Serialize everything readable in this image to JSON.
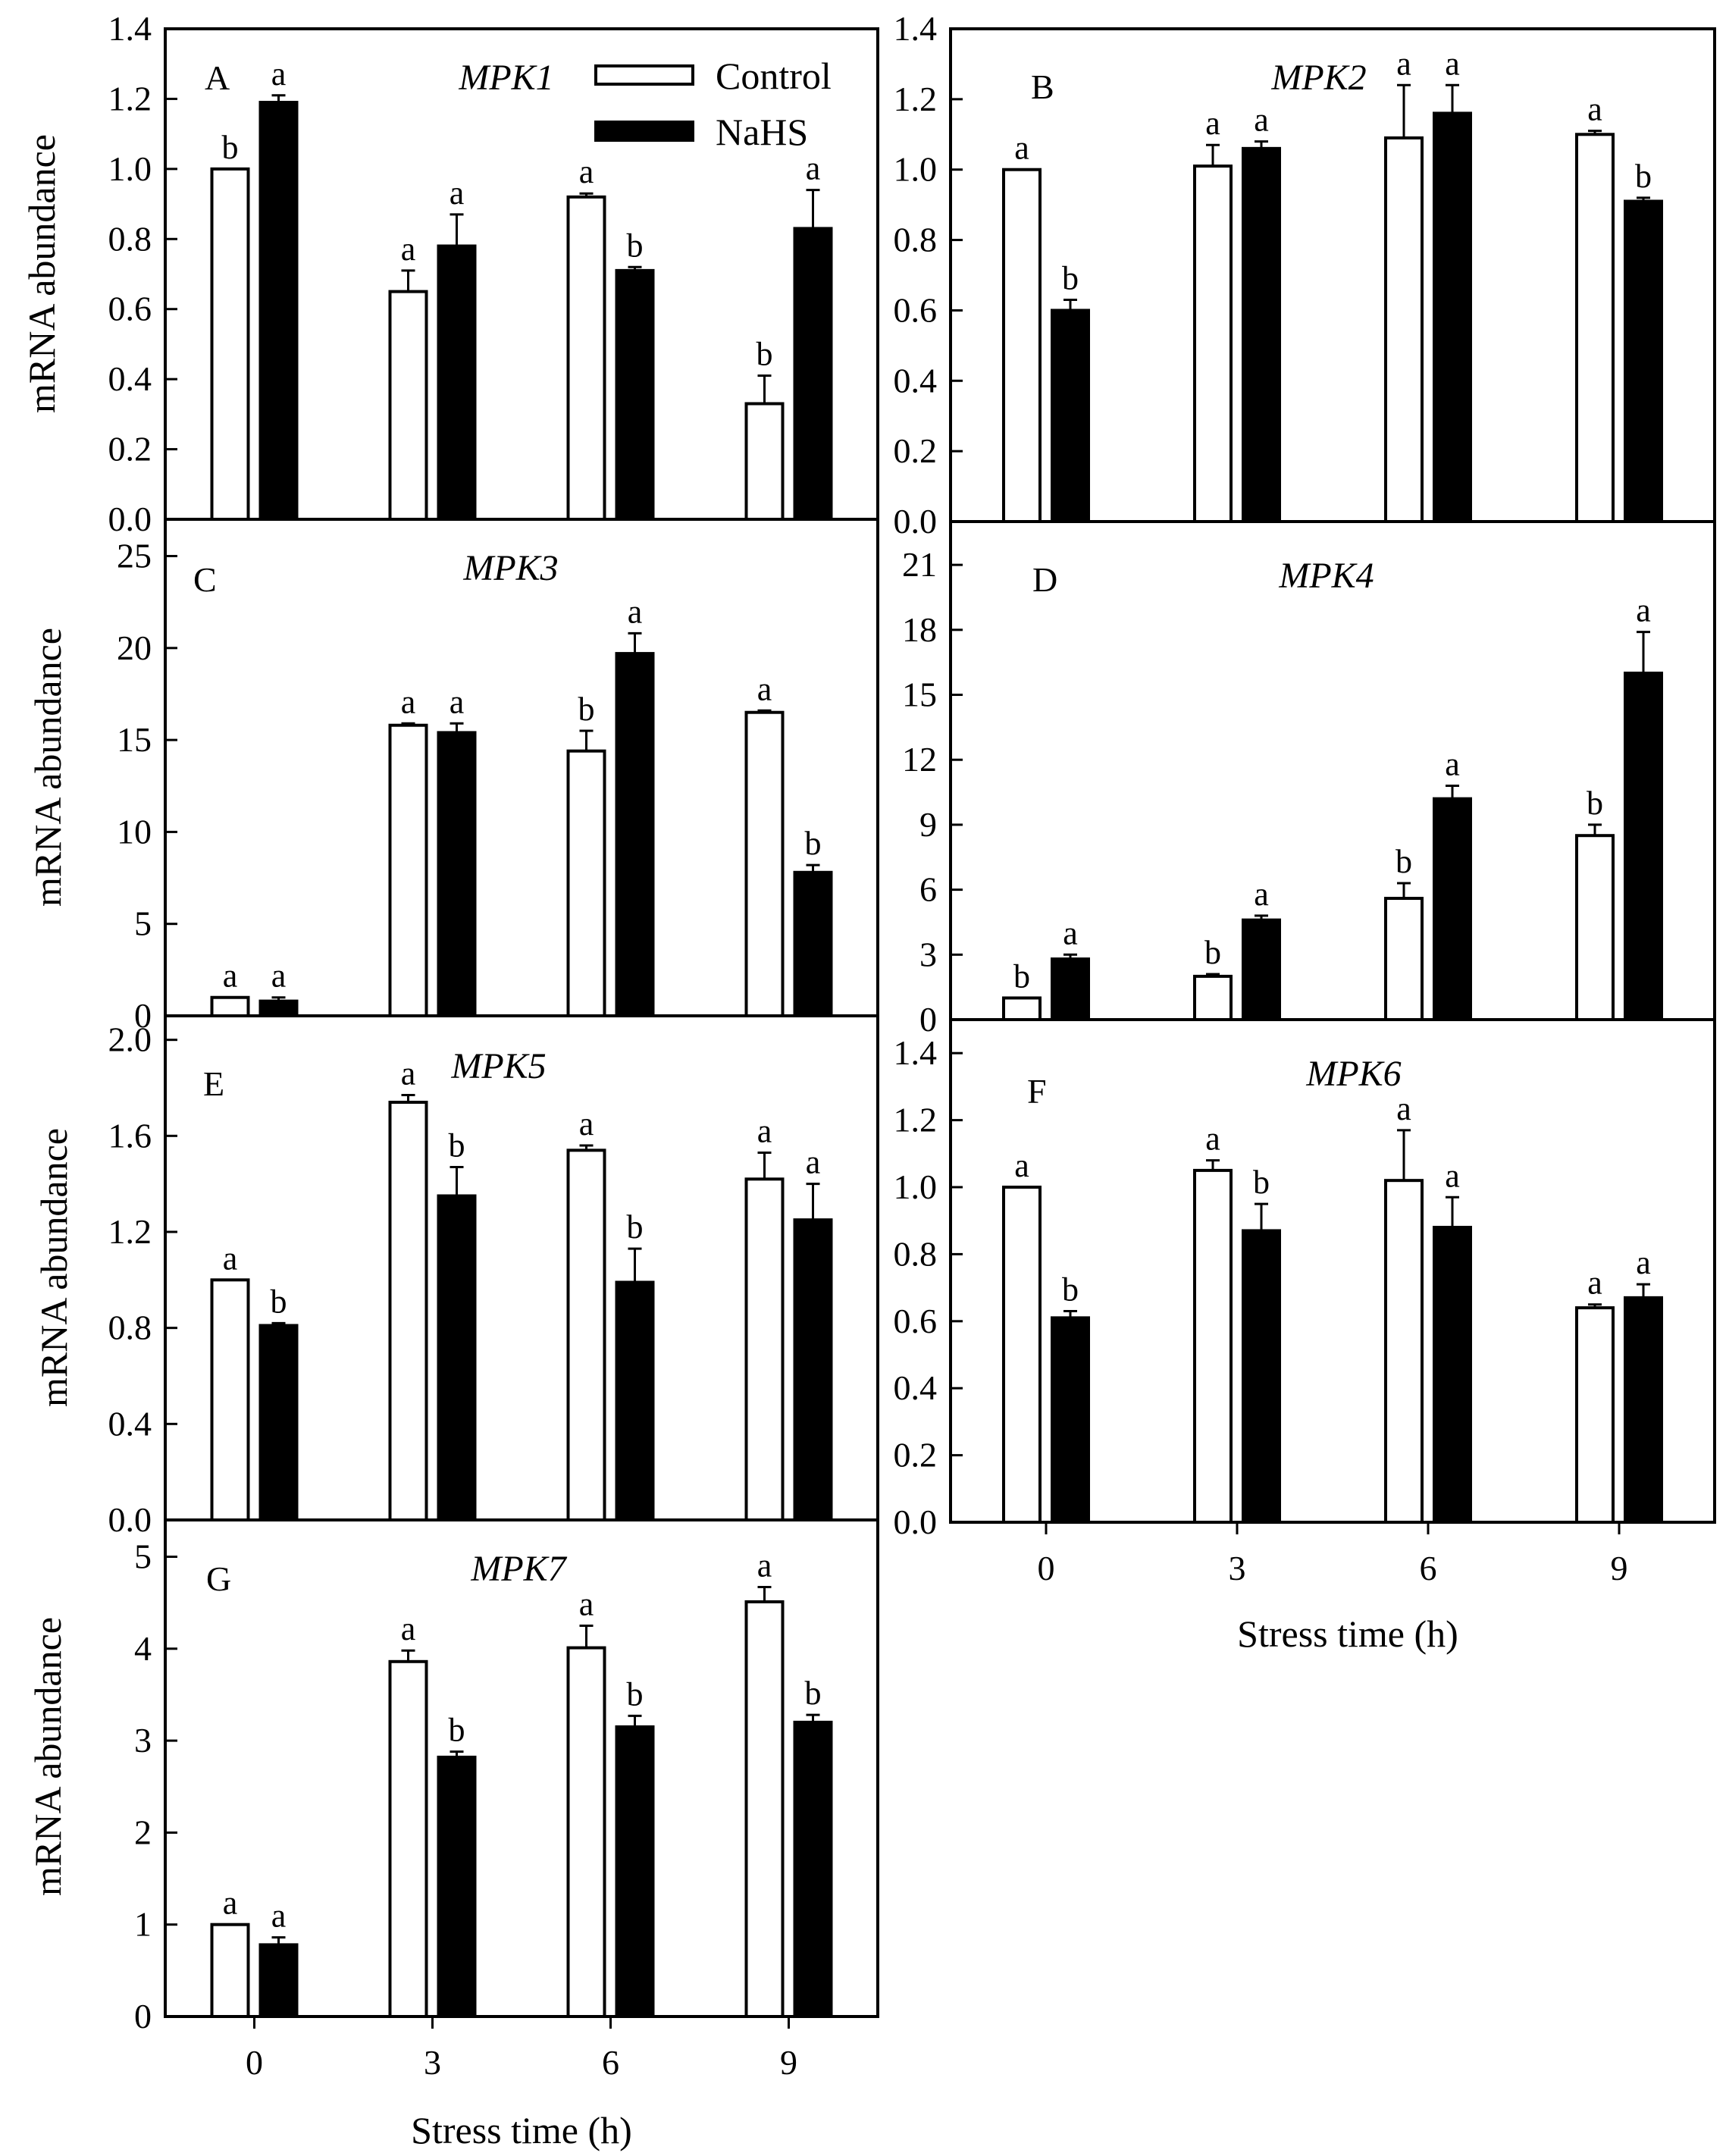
{
  "figure": {
    "x_axis_title": "Stress time (h)",
    "legend": {
      "control_label": "Control",
      "treatment_label": "NaHS"
    }
  },
  "chart_data": [
    {
      "type": "bar",
      "panel": "A",
      "title": "MPK1",
      "ylabel": "mRNA abundance",
      "xlabel": "",
      "categories": [
        "0",
        "3",
        "6",
        "9"
      ],
      "ylim": [
        0,
        1.4
      ],
      "yticks": [
        0,
        0.2,
        0.4,
        0.6,
        0.8,
        1.0,
        1.2,
        1.4
      ],
      "tick_decimals": 1,
      "series": [
        {
          "name": "Control",
          "values": [
            1.0,
            0.65,
            0.92,
            0.33
          ],
          "errors": [
            0,
            0.06,
            0.01,
            0.08
          ],
          "letters": [
            "b",
            "a",
            "a",
            "b"
          ]
        },
        {
          "name": "NaHS",
          "values": [
            1.19,
            0.78,
            0.71,
            0.83
          ],
          "errors": [
            0.02,
            0.09,
            0.01,
            0.11
          ],
          "letters": [
            "a",
            "a",
            "b",
            "a"
          ]
        }
      ]
    },
    {
      "type": "bar",
      "panel": "B",
      "title": "MPK2",
      "ylabel": "",
      "xlabel": "",
      "categories": [
        "0",
        "3",
        "6",
        "9"
      ],
      "ylim": [
        0,
        1.4
      ],
      "yticks": [
        0,
        0.2,
        0.4,
        0.6,
        0.8,
        1.0,
        1.2,
        1.4
      ],
      "tick_decimals": 1,
      "series": [
        {
          "name": "Control",
          "values": [
            1.0,
            1.01,
            1.09,
            1.1
          ],
          "errors": [
            0,
            0.06,
            0.15,
            0.01
          ],
          "letters": [
            "a",
            "a",
            "a",
            "a"
          ]
        },
        {
          "name": "NaHS",
          "values": [
            0.6,
            1.06,
            1.16,
            0.91
          ],
          "errors": [
            0.03,
            0.02,
            0.08,
            0.01
          ],
          "letters": [
            "b",
            "a",
            "a",
            "b"
          ]
        }
      ]
    },
    {
      "type": "bar",
      "panel": "C",
      "title": "MPK3",
      "ylabel": "mRNA abundance",
      "xlabel": "",
      "categories": [
        "0",
        "3",
        "6",
        "9"
      ],
      "ylim": [
        0,
        27
      ],
      "yticks": [
        0,
        5,
        10,
        15,
        20,
        25
      ],
      "tick_decimals": 0,
      "series": [
        {
          "name": "Control",
          "values": [
            1.0,
            15.8,
            14.4,
            16.5
          ],
          "errors": [
            0,
            0.1,
            1.1,
            0.1
          ],
          "letters": [
            "a",
            "a",
            "b",
            "a"
          ]
        },
        {
          "name": "NaHS",
          "values": [
            0.8,
            15.4,
            19.7,
            7.8
          ],
          "errors": [
            0.2,
            0.5,
            1.1,
            0.4
          ],
          "letters": [
            "a",
            "a",
            "a",
            "b"
          ]
        }
      ]
    },
    {
      "type": "bar",
      "panel": "D",
      "title": "MPK4",
      "ylabel": "",
      "xlabel": "",
      "categories": [
        "0",
        "3",
        "6",
        "9"
      ],
      "ylim": [
        0,
        23
      ],
      "yticks": [
        0,
        3,
        6,
        9,
        12,
        15,
        18,
        21
      ],
      "tick_decimals": 0,
      "series": [
        {
          "name": "Control",
          "values": [
            1.0,
            2.0,
            5.6,
            8.5
          ],
          "errors": [
            0,
            0.1,
            0.7,
            0.5
          ],
          "letters": [
            "b",
            "b",
            "b",
            "b"
          ]
        },
        {
          "name": "NaHS",
          "values": [
            2.8,
            4.6,
            10.2,
            16.0
          ],
          "errors": [
            0.2,
            0.2,
            0.6,
            1.9
          ],
          "letters": [
            "a",
            "a",
            "a",
            "a"
          ]
        }
      ]
    },
    {
      "type": "bar",
      "panel": "E",
      "title": "MPK5",
      "ylabel": "mRNA abundance",
      "xlabel": "",
      "categories": [
        "0",
        "3",
        "6",
        "9"
      ],
      "ylim": [
        0,
        2.1
      ],
      "yticks": [
        0,
        0.4,
        0.8,
        1.2,
        1.6,
        2.0
      ],
      "tick_decimals": 1,
      "series": [
        {
          "name": "Control",
          "values": [
            1.0,
            1.74,
            1.54,
            1.42
          ],
          "errors": [
            0,
            0.03,
            0.02,
            0.11
          ],
          "letters": [
            "a",
            "a",
            "a",
            "a"
          ]
        },
        {
          "name": "NaHS",
          "values": [
            0.81,
            1.35,
            0.99,
            1.25
          ],
          "errors": [
            0.01,
            0.12,
            0.14,
            0.15
          ],
          "letters": [
            "b",
            "b",
            "b",
            "a"
          ]
        }
      ]
    },
    {
      "type": "bar",
      "panel": "F",
      "title": "MPK6",
      "ylabel": "",
      "xlabel": "Stress time (h)",
      "categories": [
        "0",
        "3",
        "6",
        "9"
      ],
      "ylim": [
        0,
        1.5
      ],
      "yticks": [
        0,
        0.2,
        0.4,
        0.6,
        0.8,
        1.0,
        1.2,
        1.4
      ],
      "tick_decimals": 1,
      "series": [
        {
          "name": "Control",
          "values": [
            1.0,
            1.05,
            1.02,
            0.64
          ],
          "errors": [
            0,
            0.03,
            0.15,
            0.01
          ],
          "letters": [
            "a",
            "a",
            "a",
            "a"
          ]
        },
        {
          "name": "NaHS",
          "values": [
            0.61,
            0.87,
            0.88,
            0.67
          ],
          "errors": [
            0.02,
            0.08,
            0.09,
            0.04
          ],
          "letters": [
            "b",
            "b",
            "a",
            "a"
          ]
        }
      ]
    },
    {
      "type": "bar",
      "panel": "G",
      "title": "MPK7",
      "ylabel": "mRNA abundance",
      "xlabel": "Stress time (h)",
      "categories": [
        "0",
        "3",
        "6",
        "9"
      ],
      "ylim": [
        0,
        5.4
      ],
      "yticks": [
        0,
        1,
        2,
        3,
        4,
        5
      ],
      "tick_decimals": 0,
      "series": [
        {
          "name": "Control",
          "values": [
            1.0,
            3.86,
            4.01,
            4.51
          ],
          "errors": [
            0,
            0.12,
            0.24,
            0.16
          ],
          "letters": [
            "a",
            "a",
            "a",
            "a"
          ]
        },
        {
          "name": "NaHS",
          "values": [
            0.78,
            2.82,
            3.15,
            3.2
          ],
          "errors": [
            0.08,
            0.06,
            0.12,
            0.08
          ],
          "letters": [
            "a",
            "b",
            "b",
            "b"
          ]
        }
      ]
    }
  ]
}
